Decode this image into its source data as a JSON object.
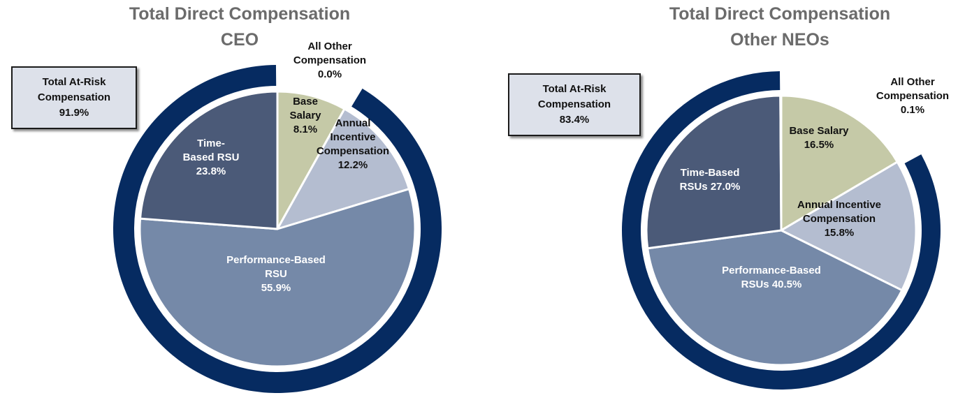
{
  "chart_data": [
    {
      "type": "pie",
      "title": [
        "Total Direct Compensation",
        "CEO"
      ],
      "at_risk": {
        "label": [
          "Total At-Risk",
          "Compensation"
        ],
        "value": "91.9%"
      },
      "slices": [
        {
          "name": "Base Salary",
          "value": 8.1,
          "color": "#c5c9a7",
          "label_lines": [
            "Base",
            "Salary",
            "8.1%"
          ],
          "label_color": "#111111"
        },
        {
          "name": "Annual Incentive Compensation",
          "value": 12.2,
          "color": "#b4bdd0",
          "label_lines": [
            "Annual",
            "Incentive",
            "Compensation",
            "12.2%"
          ],
          "label_color": "#111111"
        },
        {
          "name": "Performance-Based RSU",
          "value": 55.9,
          "color": "#7589a8",
          "label_lines": [
            "Performance-Based",
            "RSU",
            "55.9%"
          ],
          "label_color": "#ffffff"
        },
        {
          "name": "Time-Based RSU",
          "value": 23.8,
          "color": "#4b5a78",
          "label_lines": [
            "Time-",
            "Based RSU",
            "23.8%"
          ],
          "label_color": "#ffffff"
        },
        {
          "name": "All Other Compensation",
          "value": 0.0,
          "color": "#c5c9a7",
          "label_lines": [
            "All Other",
            "Compensation",
            "0.0%"
          ],
          "label_color": "#111111"
        }
      ],
      "outer_ring_color": "#062b61"
    },
    {
      "type": "pie",
      "title": [
        "Total Direct Compensation",
        "Other NEOs"
      ],
      "at_risk": {
        "label": [
          "Total At-Risk",
          "Compensation"
        ],
        "value": "83.4%"
      },
      "slices": [
        {
          "name": "Base Salary",
          "value": 16.5,
          "color": "#c5c9a7",
          "label_lines": [
            "Base Salary",
            "16.5%"
          ],
          "label_color": "#111111"
        },
        {
          "name": "Annual Incentive Compensation",
          "value": 15.8,
          "color": "#b4bdd0",
          "label_lines": [
            "Annual Incentive",
            "Compensation",
            "15.8%"
          ],
          "label_color": "#111111"
        },
        {
          "name": "Performance-Based RSUs",
          "value": 40.5,
          "color": "#7589a8",
          "label_lines": [
            "Performance-Based",
            "RSUs 40.5%"
          ],
          "label_color": "#ffffff"
        },
        {
          "name": "Time-Based RSUs",
          "value": 27.0,
          "color": "#4b5a78",
          "label_lines": [
            "Time-Based",
            "RSUs 27.0%"
          ],
          "label_color": "#ffffff"
        },
        {
          "name": "All Other Compensation",
          "value": 0.1,
          "color": "#c5c9a7",
          "label_lines": [
            "All Other",
            "Compensation",
            "0.1%"
          ],
          "label_color": "#111111"
        }
      ],
      "outer_ring_color": "#062b61"
    }
  ]
}
